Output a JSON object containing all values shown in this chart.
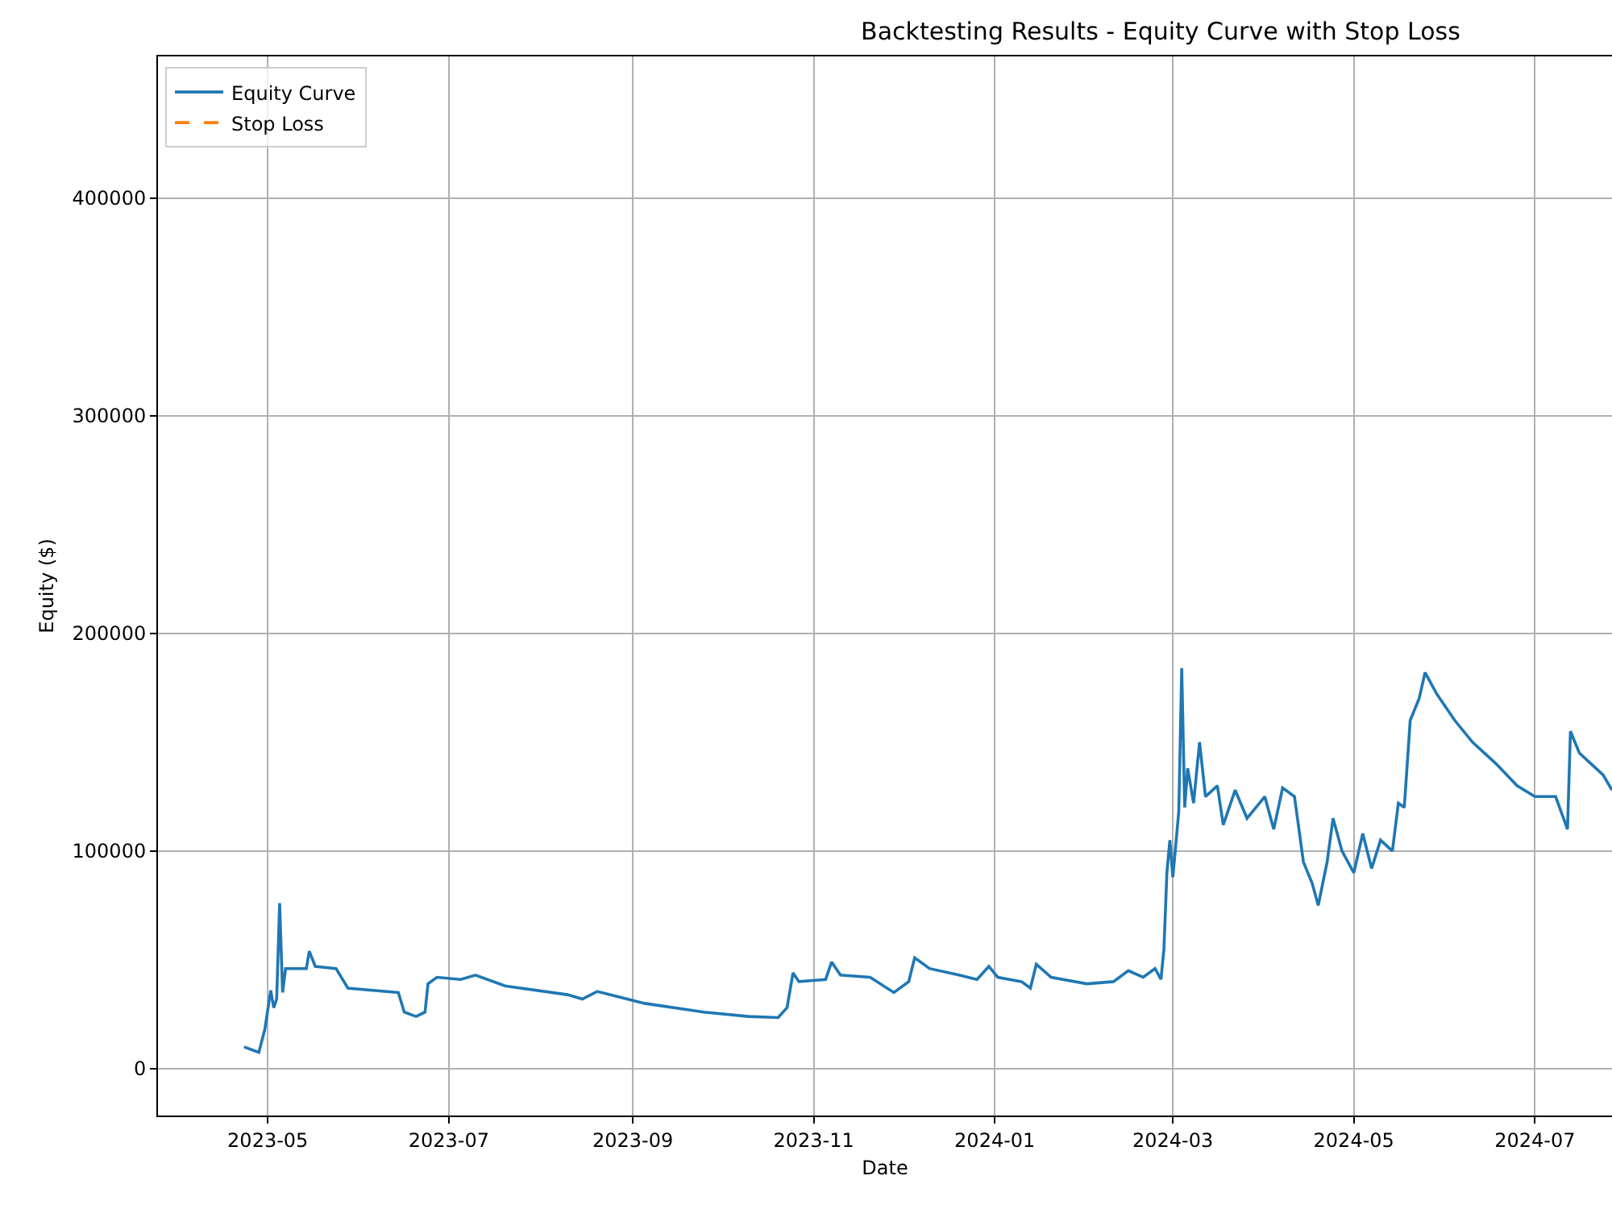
{
  "chart_data": {
    "type": "line",
    "title": "Backtesting Results - Equity Curve with Stop Loss",
    "xlabel": "Date",
    "ylabel": "Equity ($)",
    "xlim": [
      "2023-03-25",
      "2024-07-27"
    ],
    "xticks": [
      {
        "value": "2023-05-01",
        "label": "2023-05"
      },
      {
        "value": "2023-07-01",
        "label": "2023-07"
      },
      {
        "value": "2023-09-01",
        "label": "2023-09"
      },
      {
        "value": "2023-11-01",
        "label": "2023-11"
      },
      {
        "value": "2024-01-01",
        "label": "2024-01"
      },
      {
        "value": "2024-03-01",
        "label": "2024-03"
      },
      {
        "value": "2024-05-01",
        "label": "2024-05"
      },
      {
        "value": "2024-07-01",
        "label": "2024-07"
      }
    ],
    "ylim": [
      -21500,
      465000
    ],
    "yticks": [
      0,
      100000,
      200000,
      300000,
      400000
    ],
    "grid": true,
    "legend": "top left",
    "series": [
      {
        "name": "Equity Curve",
        "color": "#1f77b4",
        "line_style": "solid",
        "x": [
          "2023-04-23",
          "2023-04-26",
          "2023-04-28",
          "2023-04-30",
          "2023-05-02",
          "2023-05-03",
          "2023-05-04",
          "2023-05-05",
          "2023-05-06",
          "2023-05-07",
          "2023-05-14",
          "2023-05-15",
          "2023-05-17",
          "2023-05-24",
          "2023-05-28",
          "2023-06-14",
          "2023-06-16",
          "2023-06-20",
          "2023-06-23",
          "2023-06-24",
          "2023-06-27",
          "2023-07-05",
          "2023-07-10",
          "2023-07-20",
          "2023-08-10",
          "2023-08-15",
          "2023-08-20",
          "2023-09-05",
          "2023-09-25",
          "2023-10-10",
          "2023-10-20",
          "2023-10-23",
          "2023-10-25",
          "2023-10-27",
          "2023-11-05",
          "2023-11-07",
          "2023-11-10",
          "2023-11-20",
          "2023-11-28",
          "2023-12-03",
          "2023-12-05",
          "2023-12-10",
          "2023-12-20",
          "2023-12-26",
          "2023-12-30",
          "2024-01-02",
          "2024-01-10",
          "2024-01-13",
          "2024-01-15",
          "2024-01-20",
          "2024-02-01",
          "2024-02-10",
          "2024-02-15",
          "2024-02-20",
          "2024-02-24",
          "2024-02-26",
          "2024-02-27",
          "2024-02-28",
          "2024-02-29",
          "2024-03-01",
          "2024-03-03",
          "2024-03-04",
          "2024-03-05",
          "2024-03-06",
          "2024-03-08",
          "2024-03-10",
          "2024-03-12",
          "2024-03-16",
          "2024-03-18",
          "2024-03-22",
          "2024-03-26",
          "2024-04-01",
          "2024-04-04",
          "2024-04-07",
          "2024-04-11",
          "2024-04-14",
          "2024-04-17",
          "2024-04-19",
          "2024-04-22",
          "2024-04-24",
          "2024-04-27",
          "2024-05-01",
          "2024-05-04",
          "2024-05-07",
          "2024-05-10",
          "2024-05-14",
          "2024-05-16",
          "2024-05-18",
          "2024-05-20",
          "2024-05-23",
          "2024-05-25",
          "2024-05-29",
          "2024-06-04",
          "2024-06-10",
          "2024-06-18",
          "2024-06-25",
          "2024-07-01",
          "2024-07-08",
          "2024-07-12",
          "2024-07-13",
          "2024-07-16",
          "2024-07-20",
          "2024-07-24",
          "2024-07-27"
        ],
        "values": [
          10000,
          8500,
          7500,
          18000,
          36000,
          28000,
          32000,
          76000,
          35000,
          46000,
          46000,
          54000,
          47000,
          46000,
          37000,
          35000,
          26000,
          24000,
          26000,
          39000,
          42000,
          41000,
          43000,
          38000,
          34000,
          32000,
          35500,
          30000,
          26000,
          24000,
          23500,
          28000,
          44000,
          40000,
          41000,
          49000,
          43000,
          42000,
          35000,
          40000,
          51000,
          46000,
          43000,
          41000,
          47000,
          42000,
          40000,
          37000,
          48000,
          42000,
          39000,
          40000,
          45000,
          42000,
          46000,
          41000,
          55000,
          90000,
          105000,
          88000,
          118000,
          184000,
          120000,
          138000,
          122000,
          150000,
          125000,
          130000,
          112000,
          128000,
          115000,
          125000,
          110000,
          129000,
          125000,
          95000,
          85000,
          75000,
          95000,
          115000,
          100000,
          90000,
          108000,
          92000,
          105000,
          100000,
          122000,
          120000,
          160000,
          170000,
          182000,
          172000,
          160000,
          150000,
          140000,
          130000,
          125000,
          125000,
          110000,
          155000,
          145000,
          140000,
          135000,
          128000
        ]
      },
      {
        "name": "Stop Loss",
        "color": "#ff7f0e",
        "line_style": "dashed",
        "values": [
          null
        ]
      }
    ]
  }
}
